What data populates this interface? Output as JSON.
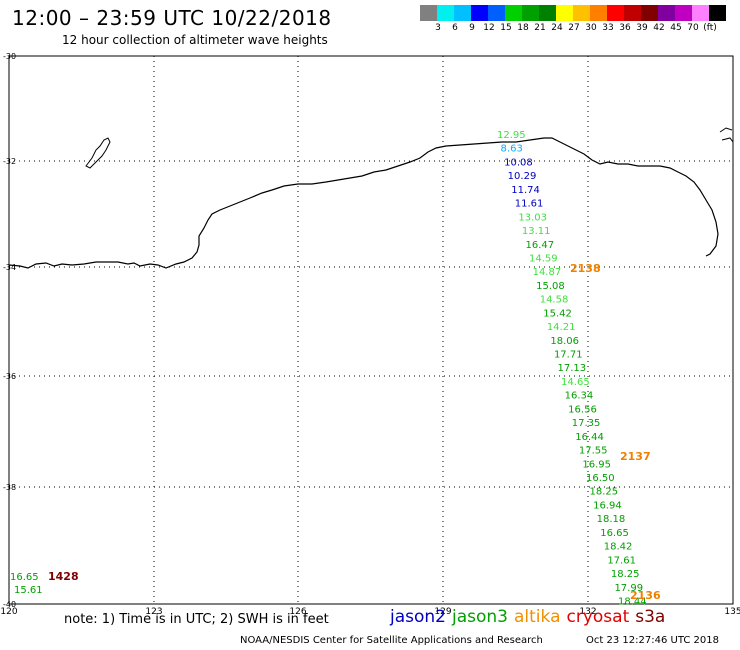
{
  "header": {
    "title": "12:00 – 23:59 UTC 10/22/2018",
    "subtitle": "12 hour collection of altimeter wave heights"
  },
  "colorbar": {
    "colors": [
      "#808080",
      "#00f0f0",
      "#00c0ff",
      "#0000ff",
      "#0060ff",
      "#00d000",
      "#00a000",
      "#008000",
      "#ffff00",
      "#ffc000",
      "#ff8000",
      "#ff0000",
      "#c00000",
      "#800000",
      "#8000a0",
      "#c000c0",
      "#ff80ff",
      "#000000"
    ],
    "labels": [
      "3",
      "6",
      "9",
      "12",
      "15",
      "18",
      "21",
      "24",
      "27",
      "30",
      "33",
      "36",
      "39",
      "42",
      "45",
      "70",
      "(ft)"
    ]
  },
  "axes": {
    "lat_labels": [
      "-30",
      "-32",
      "-34",
      "-36",
      "-38",
      "-40"
    ],
    "lon_labels": [
      "120",
      "123",
      "126",
      "129",
      "132",
      "135"
    ]
  },
  "observations": [
    {
      "v": "12.95",
      "c": "#40e040"
    },
    {
      "v": "8.63",
      "c": "#00b0ff"
    },
    {
      "v": "10.08",
      "c": "#0000c0"
    },
    {
      "v": "10.29",
      "c": "#0000c0"
    },
    {
      "v": "11.74",
      "c": "#0000c0"
    },
    {
      "v": "11.61",
      "c": "#0000c0"
    },
    {
      "v": "13.03",
      "c": "#40e040"
    },
    {
      "v": "13.11",
      "c": "#40e040"
    },
    {
      "v": "16.47",
      "c": "#00a000"
    },
    {
      "v": "14.59",
      "c": "#40e040"
    },
    {
      "v": "14.87",
      "c": "#40e040"
    },
    {
      "v": "15.08",
      "c": "#00a000"
    },
    {
      "v": "14.58",
      "c": "#40e040"
    },
    {
      "v": "15.42",
      "c": "#00a000"
    },
    {
      "v": "14.21",
      "c": "#40e040"
    },
    {
      "v": "18.06",
      "c": "#00a000"
    },
    {
      "v": "17.71",
      "c": "#00a000"
    },
    {
      "v": "17.13",
      "c": "#00a000"
    },
    {
      "v": "14.65",
      "c": "#40e040"
    },
    {
      "v": "16.34",
      "c": "#00a000"
    },
    {
      "v": "16.56",
      "c": "#00a000"
    },
    {
      "v": "17.35",
      "c": "#00a000"
    },
    {
      "v": "16.44",
      "c": "#00a000"
    },
    {
      "v": "17.55",
      "c": "#00a000"
    },
    {
      "v": "16.95",
      "c": "#00a000"
    },
    {
      "v": "16.50",
      "c": "#00a000"
    },
    {
      "v": "18.25",
      "c": "#00a000"
    },
    {
      "v": "16.94",
      "c": "#00a000"
    },
    {
      "v": "18.18",
      "c": "#00a000"
    },
    {
      "v": "16.65",
      "c": "#00a000"
    },
    {
      "v": "18.42",
      "c": "#00a000"
    },
    {
      "v": "17.61",
      "c": "#00a000"
    },
    {
      "v": "18.25",
      "c": "#00a000"
    },
    {
      "v": "17.99",
      "c": "#00a000"
    },
    {
      "v": "18.44",
      "c": "#00a000"
    }
  ],
  "pass_labels": [
    {
      "text": "2138",
      "color": "#f08000"
    },
    {
      "text": "2137",
      "color": "#f08000"
    },
    {
      "text": "2136",
      "color": "#f08000"
    },
    {
      "text": "1428",
      "color": "#800000"
    }
  ],
  "bottom_left_obs": [
    {
      "v": "16.65",
      "c": "#00a000"
    },
    {
      "v": "15.61",
      "c": "#00a000"
    }
  ],
  "note": "note: 1) Time is in UTC; 2) SWH is in feet",
  "legend": [
    {
      "name": "jason2",
      "color": "#0000c0"
    },
    {
      "name": "jason3",
      "color": "#00a000"
    },
    {
      "name": "altika",
      "color": "#f09000"
    },
    {
      "name": "cryosat",
      "color": "#e00000"
    },
    {
      "name": "s3a",
      "color": "#800000"
    }
  ],
  "footer": {
    "credit": "NOAA/NESDIS Center for Satellite Applications and Research",
    "timestamp": "Oct 23 12:27:46 UTC 2018"
  }
}
